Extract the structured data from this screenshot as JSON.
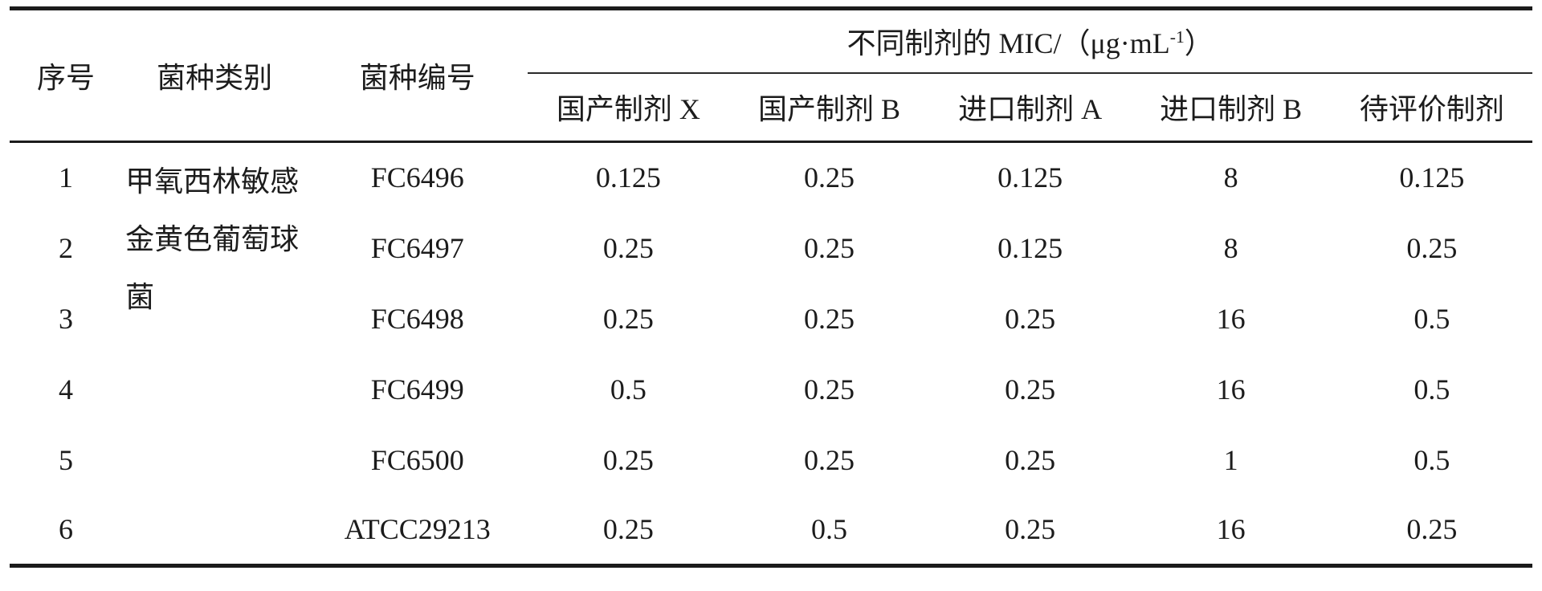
{
  "table": {
    "columns": {
      "no": "序号",
      "species": "菌种类别",
      "strain_id": "菌种编号",
      "mic_prefix": "不同制剂的 MIC/（μg·mL",
      "mic_sup": "-1",
      "mic_suffix": "）",
      "preparations": [
        "国产制剂 X",
        "国产制剂 B",
        "进口制剂 A",
        "进口制剂 B",
        "待评价制剂"
      ]
    },
    "species_label": "甲氧西林敏感金黄色葡萄球菌",
    "rows": [
      {
        "no": "1",
        "strain": "FC6496",
        "values": [
          "0.125",
          "0.25",
          "0.125",
          "8",
          "0.125"
        ]
      },
      {
        "no": "2",
        "strain": "FC6497",
        "values": [
          "0.25",
          "0.25",
          "0.125",
          "8",
          "0.25"
        ]
      },
      {
        "no": "3",
        "strain": "FC6498",
        "values": [
          "0.25",
          "0.25",
          "0.25",
          "16",
          "0.5"
        ]
      },
      {
        "no": "4",
        "strain": "FC6499",
        "values": [
          "0.5",
          "0.25",
          "0.25",
          "16",
          "0.5"
        ]
      },
      {
        "no": "5",
        "strain": "FC6500",
        "values": [
          "0.25",
          "0.25",
          "0.25",
          "1",
          "0.5"
        ]
      },
      {
        "no": "6",
        "strain": "ATCC29213",
        "values": [
          "0.25",
          "0.5",
          "0.25",
          "16",
          "0.25"
        ]
      }
    ]
  },
  "colors": {
    "text": "#1c1c1c",
    "rule": "#1b1b1b",
    "background": "#ffffff"
  }
}
